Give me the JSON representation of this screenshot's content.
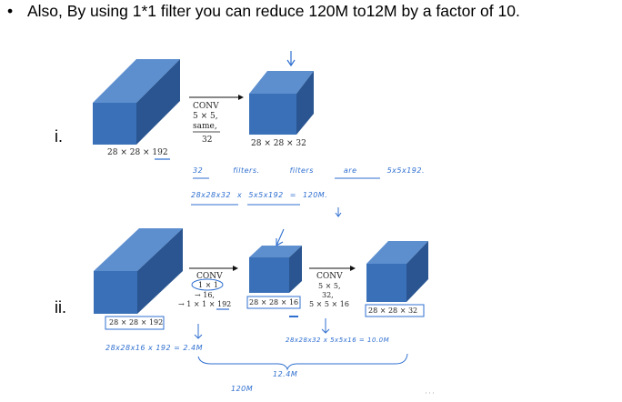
{
  "bullet": {
    "symbol": "•",
    "text": "Also, By using 1*1 filter you can reduce 120M to12M by a factor of 10."
  },
  "row1": {
    "label": "i.",
    "input_dims": "28 × 28 × 192",
    "conv": {
      "name": "CONV",
      "kernel": "5 × 5,",
      "mode": "same,",
      "filters": "32"
    },
    "output_dims": "28 × 28 × 32",
    "note_filters": "32 filters.   filters are 5x5x192.",
    "note_calc": "28x28x32  x 5x5x192  = 120M."
  },
  "row2": {
    "label": "ii.",
    "input_dims": "28 × 28 × 192",
    "conv1": {
      "name": "CONV",
      "kernel": "1 × 1",
      "filters": "→ 16,",
      "shape": "→ 1 × 1 × 192"
    },
    "mid_dims": "28 × 28 × 16",
    "conv2": {
      "name": "CONV",
      "kernel": "5 × 5,",
      "filters": "32,",
      "shape": "5 × 5 × 16"
    },
    "output_dims": "28 × 28 × 32",
    "calc1": "28x28x16  x 192 = 2.4M",
    "calc2": "28x28x32  x 5x5x16 = 10.0M",
    "sum": "12.4M",
    "prev": "120M"
  },
  "colors": {
    "cube_front": "#3a70b8",
    "cube_top": "#5d8fcf",
    "cube_side": "#2a5590",
    "ink": "#2f6fd0"
  }
}
